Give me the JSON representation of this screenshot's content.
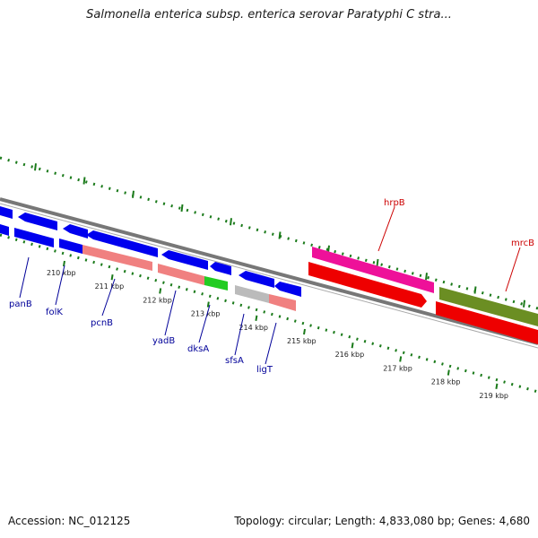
{
  "title": "Salmonella enterica subsp. enterica serovar Paratyphi C stra...",
  "footer": {
    "accession": "Accession: NC_012125",
    "topology": "Topology: circular; Length: 4,833,080 bp; Genes: 4,680"
  },
  "colors": {
    "blue_gene": "#0000ee",
    "salmon_gene": "#f08080",
    "green_gene": "#22cc22",
    "grey_gene": "#bbbbbb",
    "pink_gene": "#ee1199",
    "red_gene": "#ee0000",
    "olive_gene": "#6b8e23",
    "tick": "#1a7a1a",
    "backbone": "#777777",
    "label_blue": "#000099",
    "label_red": "#cc0000"
  },
  "ticks": [
    {
      "label": "210 kbp"
    },
    {
      "label": "211 kbp"
    },
    {
      "label": "212 kbp"
    },
    {
      "label": "213 kbp"
    },
    {
      "label": "214 kbp"
    },
    {
      "label": "215 kbp"
    },
    {
      "label": "216 kbp"
    },
    {
      "label": "217 kbp"
    },
    {
      "label": "218 kbp"
    },
    {
      "label": "219 kbp"
    }
  ],
  "gene_labels": [
    {
      "name": "panB",
      "color": "blue"
    },
    {
      "name": "folK",
      "color": "blue"
    },
    {
      "name": "pcnB",
      "color": "blue"
    },
    {
      "name": "yadB",
      "color": "blue"
    },
    {
      "name": "dksA",
      "color": "blue"
    },
    {
      "name": "sfsA",
      "color": "blue"
    },
    {
      "name": "ligT",
      "color": "blue"
    },
    {
      "name": "hrpB",
      "color": "red"
    },
    {
      "name": "mrcB",
      "color": "red"
    }
  ]
}
